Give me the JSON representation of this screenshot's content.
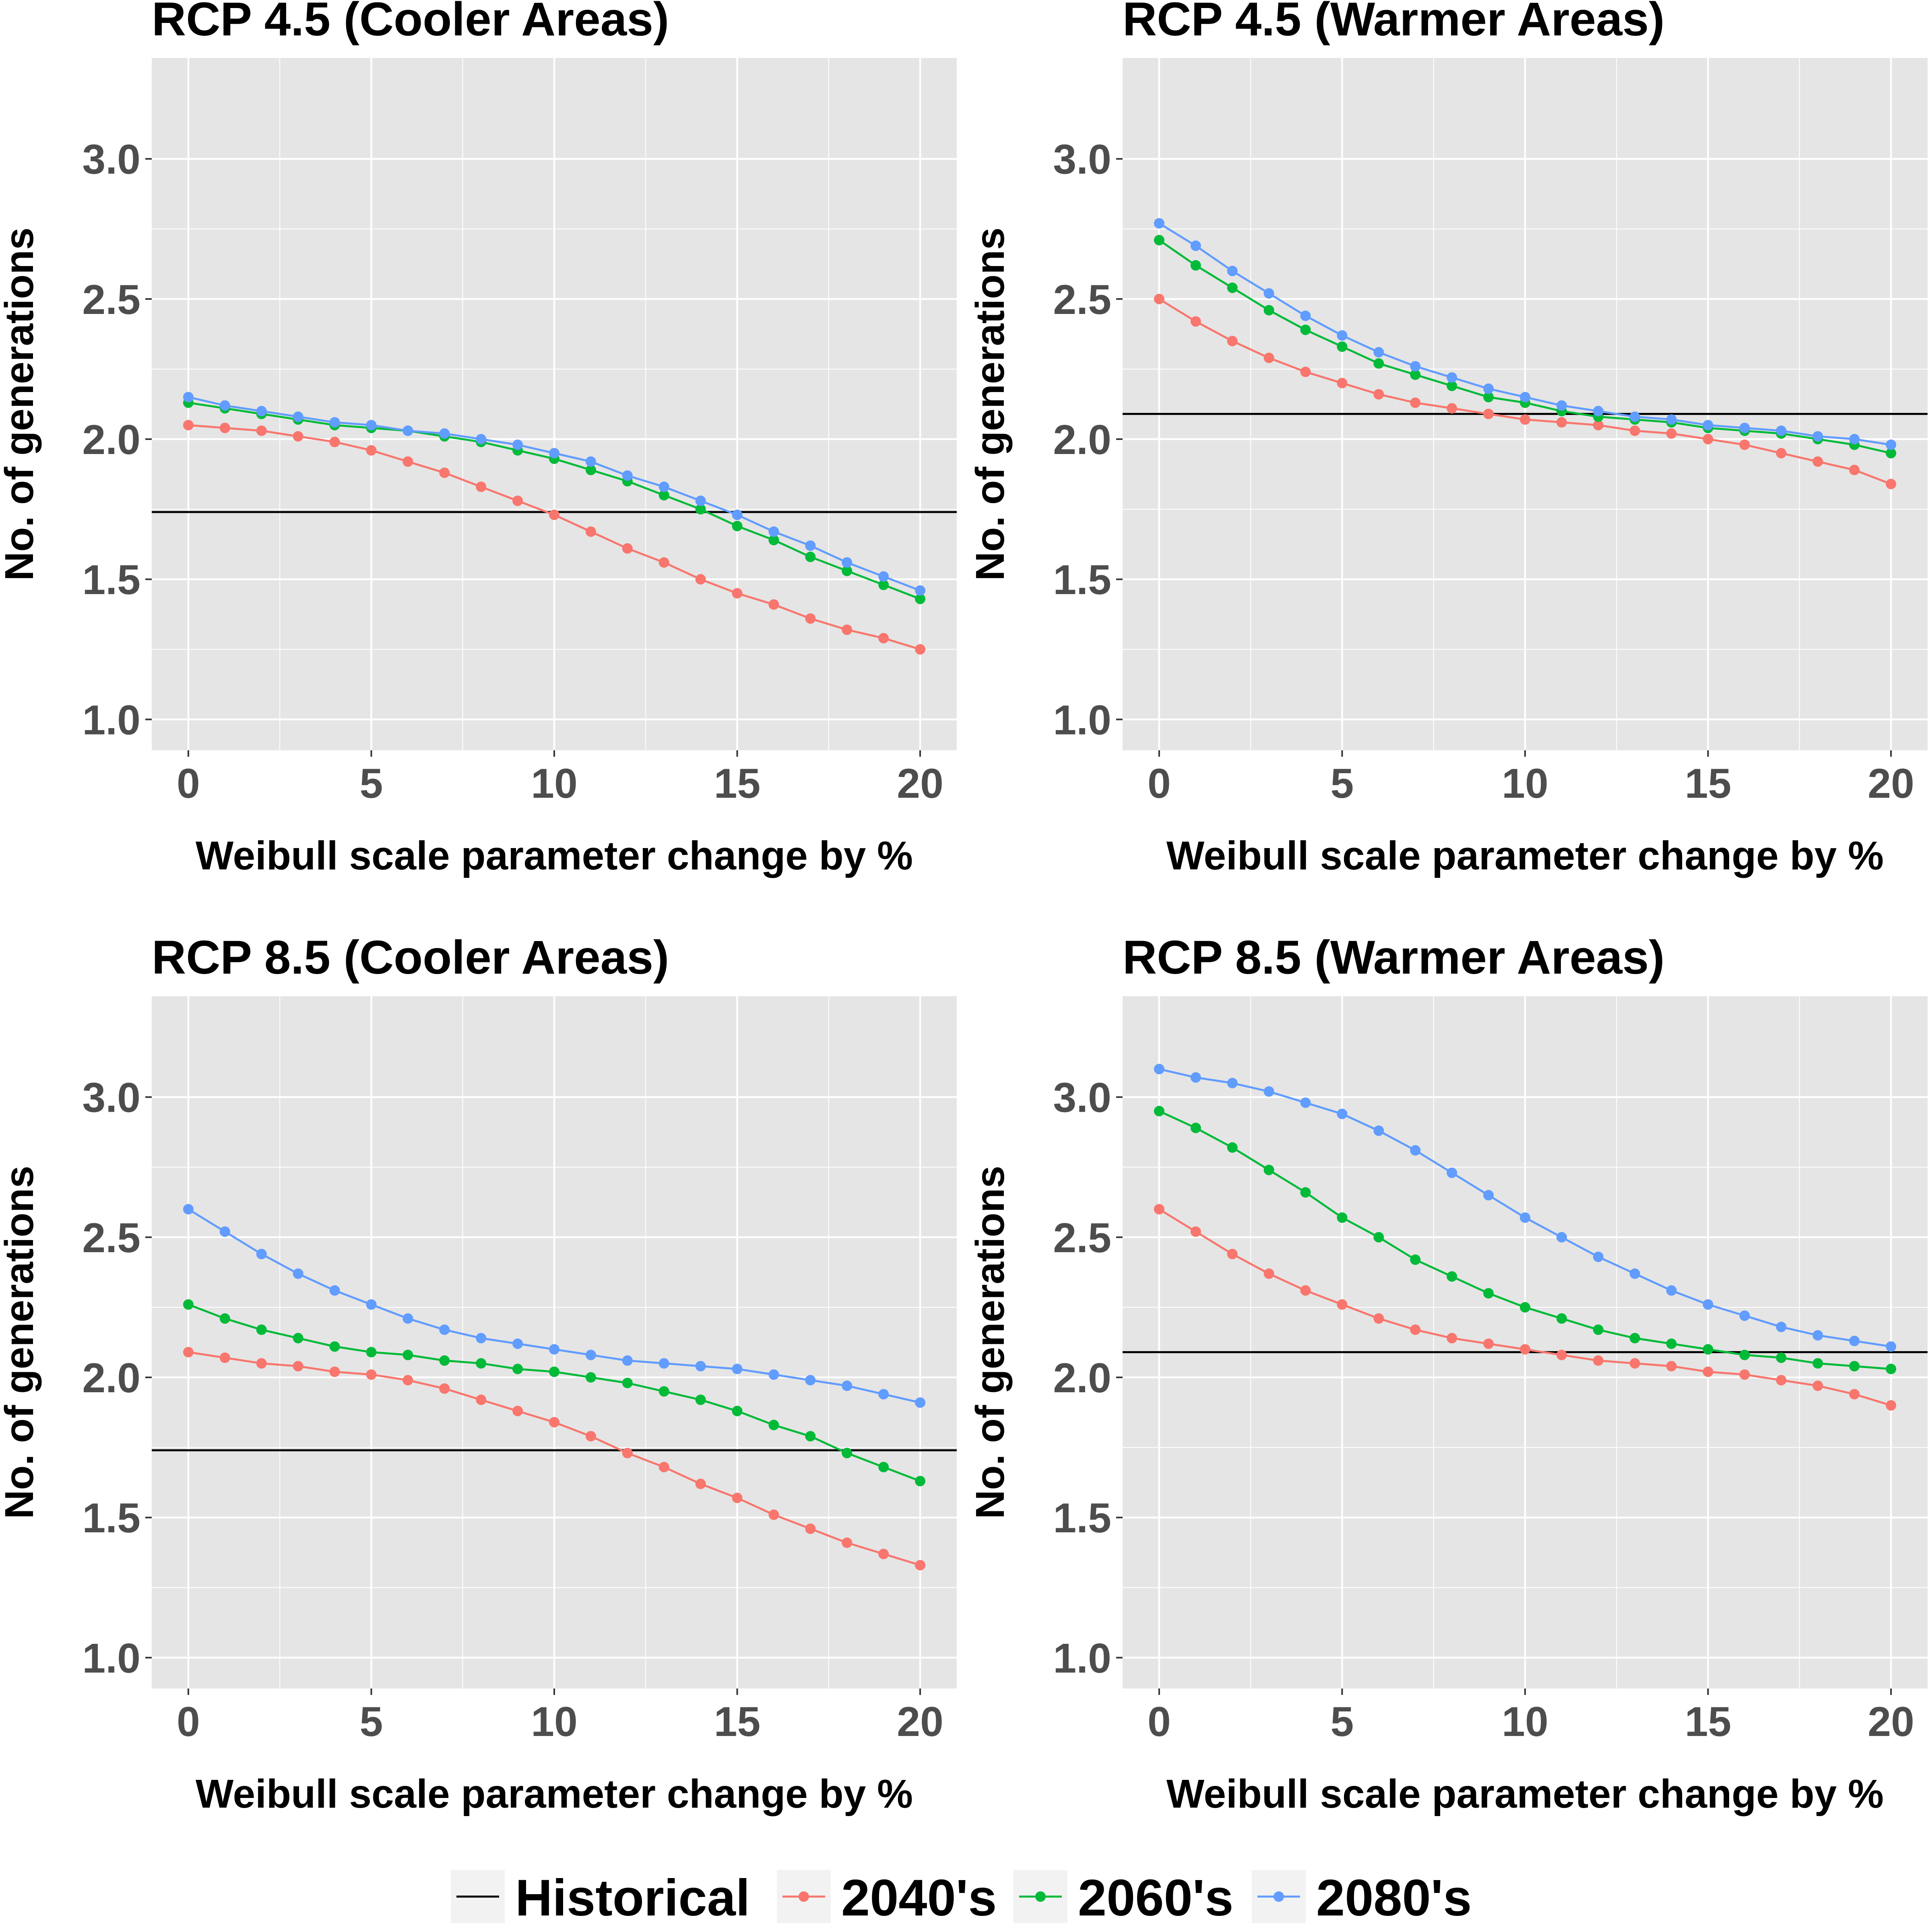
{
  "chart_data": [
    {
      "type": "line",
      "title": "RCP 4.5 (Cooler Areas)",
      "xlabel": "Weibull scale parameter change by %",
      "ylabel": "No. of generations",
      "xlim": [
        -1,
        21
      ],
      "ylim": [
        0.89,
        3.36
      ],
      "xticks": [
        0,
        5,
        10,
        15,
        20
      ],
      "yticks": [
        "1.0",
        "1.5",
        "2.0",
        "2.5",
        "3.0"
      ],
      "historical": 1.74,
      "x": [
        0,
        1,
        2,
        3,
        4,
        5,
        6,
        7,
        8,
        9,
        10,
        11,
        12,
        13,
        14,
        15,
        16,
        17,
        18,
        19,
        20
      ],
      "series": [
        {
          "name": "2040's",
          "color": "#F8766D",
          "values": [
            2.05,
            2.04,
            2.03,
            2.01,
            1.99,
            1.96,
            1.92,
            1.88,
            1.83,
            1.78,
            1.73,
            1.67,
            1.61,
            1.56,
            1.5,
            1.45,
            1.41,
            1.36,
            1.32,
            1.29,
            1.25
          ]
        },
        {
          "name": "2060's",
          "color": "#00BA38",
          "values": [
            2.13,
            2.11,
            2.09,
            2.07,
            2.05,
            2.04,
            2.03,
            2.01,
            1.99,
            1.96,
            1.93,
            1.89,
            1.85,
            1.8,
            1.75,
            1.69,
            1.64,
            1.58,
            1.53,
            1.48,
            1.43
          ]
        },
        {
          "name": "2080's",
          "color": "#619CFF",
          "values": [
            2.15,
            2.12,
            2.1,
            2.08,
            2.06,
            2.05,
            2.03,
            2.02,
            2.0,
            1.98,
            1.95,
            1.92,
            1.87,
            1.83,
            1.78,
            1.73,
            1.67,
            1.62,
            1.56,
            1.51,
            1.46
          ]
        }
      ]
    },
    {
      "type": "line",
      "title": "RCP 4.5 (Warmer Areas)",
      "xlabel": "Weibull scale parameter change by %",
      "ylabel": "No. of generations",
      "xlim": [
        -1,
        21
      ],
      "ylim": [
        0.89,
        3.36
      ],
      "xticks": [
        0,
        5,
        10,
        15,
        20
      ],
      "yticks": [
        "1.0",
        "1.5",
        "2.0",
        "2.5",
        "3.0"
      ],
      "historical": 2.09,
      "x": [
        0,
        1,
        2,
        3,
        4,
        5,
        6,
        7,
        8,
        9,
        10,
        11,
        12,
        13,
        14,
        15,
        16,
        17,
        18,
        19,
        20
      ],
      "series": [
        {
          "name": "2040's",
          "color": "#F8766D",
          "values": [
            2.5,
            2.42,
            2.35,
            2.29,
            2.24,
            2.2,
            2.16,
            2.13,
            2.11,
            2.09,
            2.07,
            2.06,
            2.05,
            2.03,
            2.02,
            2.0,
            1.98,
            1.95,
            1.92,
            1.89,
            1.84
          ]
        },
        {
          "name": "2060's",
          "color": "#00BA38",
          "values": [
            2.71,
            2.62,
            2.54,
            2.46,
            2.39,
            2.33,
            2.27,
            2.23,
            2.19,
            2.15,
            2.13,
            2.1,
            2.08,
            2.07,
            2.06,
            2.04,
            2.03,
            2.02,
            2.0,
            1.98,
            1.95
          ]
        },
        {
          "name": "2080's",
          "color": "#619CFF",
          "values": [
            2.77,
            2.69,
            2.6,
            2.52,
            2.44,
            2.37,
            2.31,
            2.26,
            2.22,
            2.18,
            2.15,
            2.12,
            2.1,
            2.08,
            2.07,
            2.05,
            2.04,
            2.03,
            2.01,
            2.0,
            1.98
          ]
        }
      ]
    },
    {
      "type": "line",
      "title": "RCP 8.5 (Cooler Areas)",
      "xlabel": "Weibull scale parameter change by %",
      "ylabel": "No. of generations",
      "xlim": [
        -1,
        21
      ],
      "ylim": [
        0.89,
        3.36
      ],
      "xticks": [
        0,
        5,
        10,
        15,
        20
      ],
      "yticks": [
        "1.0",
        "1.5",
        "2.0",
        "2.5",
        "3.0"
      ],
      "historical": 1.74,
      "x": [
        0,
        1,
        2,
        3,
        4,
        5,
        6,
        7,
        8,
        9,
        10,
        11,
        12,
        13,
        14,
        15,
        16,
        17,
        18,
        19,
        20
      ],
      "series": [
        {
          "name": "2040's",
          "color": "#F8766D",
          "values": [
            2.09,
            2.07,
            2.05,
            2.04,
            2.02,
            2.01,
            1.99,
            1.96,
            1.92,
            1.88,
            1.84,
            1.79,
            1.73,
            1.68,
            1.62,
            1.57,
            1.51,
            1.46,
            1.41,
            1.37,
            1.33
          ]
        },
        {
          "name": "2060's",
          "color": "#00BA38",
          "values": [
            2.26,
            2.21,
            2.17,
            2.14,
            2.11,
            2.09,
            2.08,
            2.06,
            2.05,
            2.03,
            2.02,
            2.0,
            1.98,
            1.95,
            1.92,
            1.88,
            1.83,
            1.79,
            1.73,
            1.68,
            1.63
          ]
        },
        {
          "name": "2080's",
          "color": "#619CFF",
          "values": [
            2.6,
            2.52,
            2.44,
            2.37,
            2.31,
            2.26,
            2.21,
            2.17,
            2.14,
            2.12,
            2.1,
            2.08,
            2.06,
            2.05,
            2.04,
            2.03,
            2.01,
            1.99,
            1.97,
            1.94,
            1.91
          ]
        }
      ]
    },
    {
      "type": "line",
      "title": "RCP 8.5 (Warmer Areas)",
      "xlabel": "Weibull scale parameter change by %",
      "ylabel": "No. of generations",
      "xlim": [
        -1,
        21
      ],
      "ylim": [
        0.89,
        3.36
      ],
      "xticks": [
        0,
        5,
        10,
        15,
        20
      ],
      "yticks": [
        "1.0",
        "1.5",
        "2.0",
        "2.5",
        "3.0"
      ],
      "historical": 2.09,
      "x": [
        0,
        1,
        2,
        3,
        4,
        5,
        6,
        7,
        8,
        9,
        10,
        11,
        12,
        13,
        14,
        15,
        16,
        17,
        18,
        19,
        20
      ],
      "series": [
        {
          "name": "2040's",
          "color": "#F8766D",
          "values": [
            2.6,
            2.52,
            2.44,
            2.37,
            2.31,
            2.26,
            2.21,
            2.17,
            2.14,
            2.12,
            2.1,
            2.08,
            2.06,
            2.05,
            2.04,
            2.02,
            2.01,
            1.99,
            1.97,
            1.94,
            1.9
          ]
        },
        {
          "name": "2060's",
          "color": "#00BA38",
          "values": [
            2.95,
            2.89,
            2.82,
            2.74,
            2.66,
            2.57,
            2.5,
            2.42,
            2.36,
            2.3,
            2.25,
            2.21,
            2.17,
            2.14,
            2.12,
            2.1,
            2.08,
            2.07,
            2.05,
            2.04,
            2.03
          ]
        },
        {
          "name": "2080's",
          "color": "#619CFF",
          "values": [
            3.1,
            3.07,
            3.05,
            3.02,
            2.98,
            2.94,
            2.88,
            2.81,
            2.73,
            2.65,
            2.57,
            2.5,
            2.43,
            2.37,
            2.31,
            2.26,
            2.22,
            2.18,
            2.15,
            2.13,
            2.11
          ]
        }
      ]
    }
  ],
  "legend": {
    "position": "bottom",
    "items": [
      {
        "label": "Historical",
        "color": "#000000",
        "kind": "line"
      },
      {
        "label": "2040's",
        "color": "#F8766D",
        "kind": "line-point"
      },
      {
        "label": "2060's",
        "color": "#00BA38",
        "kind": "line-point"
      },
      {
        "label": "2080's",
        "color": "#619CFF",
        "kind": "line-point"
      }
    ]
  },
  "style": {
    "panel_background": "#E5E5E5",
    "grid_color": "#FFFFFF",
    "historical_color": "#000000"
  }
}
